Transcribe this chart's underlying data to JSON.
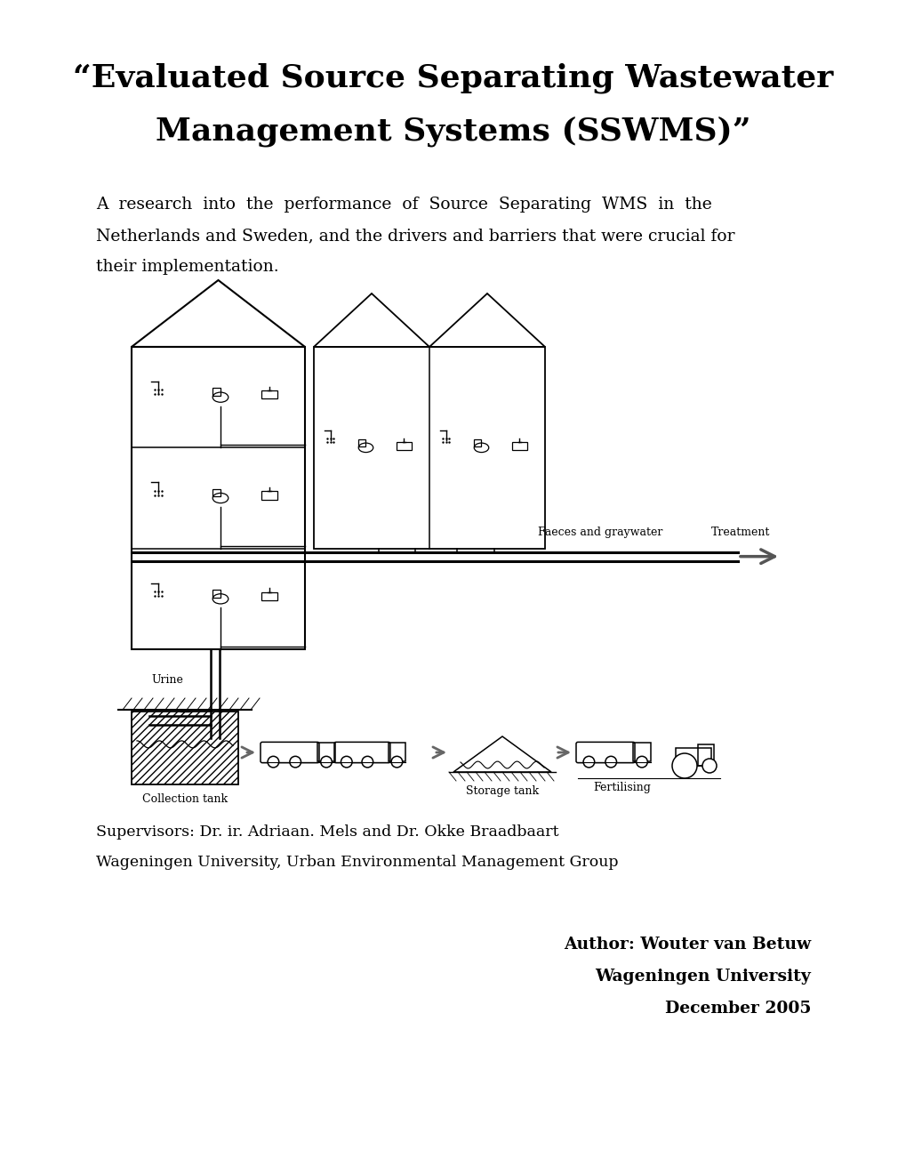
{
  "title_line1": "“Evaluated Source Separating Wastewater",
  "title_line2": "Management Systems (SSWMS)”",
  "abstract_line1": "A  research  into  the  performance  of  Source  Separating  WMS  in  the",
  "abstract_line2": "Netherlands and Sweden, and the drivers and barriers that were crucial for",
  "abstract_line3": "their implementation.",
  "supervisor_line1": "Supervisors: Dr. ir. Adriaan. Mels and Dr. Okke Braadbaart",
  "supervisor_line2": "Wageningen University, Urban Environmental Management Group",
  "author_label": "Author: Wouter van Betuw",
  "university_label": "Wageningen University",
  "date_label": "December 2005",
  "label_faeces": "Faeces and graywater",
  "label_treatment": "Treatment",
  "label_urine": "Urine",
  "label_collection": "Collection tank",
  "label_storage": "Storage tank",
  "label_fertilising": "Fertilising",
  "bg_color": "#ffffff",
  "text_color": "#000000",
  "title_fontsize": 26,
  "body_fontsize": 13.5,
  "supervisor_fontsize": 12.5,
  "author_fontsize": 13.5,
  "diagram_fontsize": 9.0
}
